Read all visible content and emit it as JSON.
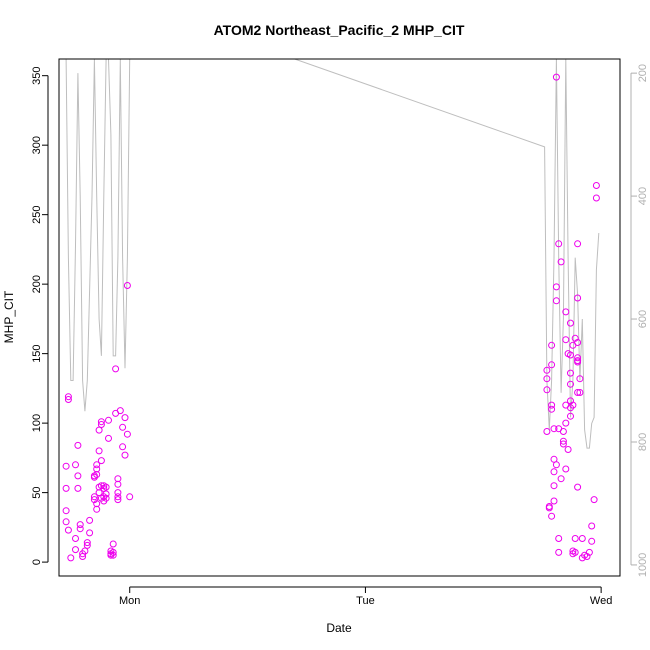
{
  "chart_data": {
    "type": "scatter",
    "title": "ATOM2 Northeast_Pacific_2 MHP_CIT",
    "xlabel": "Date",
    "ylabel": "MHP_CIT",
    "x_ticks": [
      "Mon",
      "Tue",
      "Wed"
    ],
    "x_tick_days": [
      1,
      2,
      3
    ],
    "xlim_days": [
      0.7,
      3.08
    ],
    "ylim": [
      -10,
      362
    ],
    "y_ticks": [
      0,
      50,
      100,
      150,
      200,
      250,
      300,
      350
    ],
    "y2_ticks": [
      200,
      400,
      600,
      800,
      1000
    ],
    "y2lim": [
      1018,
      177
    ],
    "y2_reversed": true,
    "point_color": "#ee00ee",
    "line_color": "#bebebe",
    "series": [
      {
        "values": [
          [
            0.74,
            119
          ],
          [
            0.74,
            117
          ],
          [
            0.73,
            69
          ],
          [
            0.73,
            53
          ],
          [
            0.73,
            37
          ],
          [
            0.73,
            29
          ],
          [
            0.74,
            23
          ],
          [
            0.75,
            3
          ],
          [
            0.77,
            9
          ],
          [
            0.77,
            17
          ],
          [
            0.78,
            84
          ],
          [
            0.77,
            70
          ],
          [
            0.78,
            62
          ],
          [
            0.78,
            53
          ],
          [
            0.79,
            27
          ],
          [
            0.79,
            24
          ],
          [
            0.8,
            6
          ],
          [
            0.8,
            4
          ],
          [
            0.81,
            8
          ],
          [
            0.82,
            12
          ],
          [
            0.82,
            14
          ],
          [
            0.83,
            30
          ],
          [
            0.83,
            21
          ],
          [
            0.85,
            62
          ],
          [
            0.85,
            61
          ],
          [
            0.85,
            47
          ],
          [
            0.85,
            45
          ],
          [
            0.86,
            70
          ],
          [
            0.86,
            67
          ],
          [
            0.86,
            63
          ],
          [
            0.86,
            42
          ],
          [
            0.86,
            38
          ],
          [
            0.87,
            95
          ],
          [
            0.87,
            80
          ],
          [
            0.87,
            54
          ],
          [
            0.87,
            50
          ],
          [
            0.88,
            101
          ],
          [
            0.88,
            99
          ],
          [
            0.88,
            73
          ],
          [
            0.88,
            55
          ],
          [
            0.88,
            46
          ],
          [
            0.89,
            55
          ],
          [
            0.89,
            53
          ],
          [
            0.89,
            47
          ],
          [
            0.89,
            44
          ],
          [
            0.9,
            54
          ],
          [
            0.9,
            49
          ],
          [
            0.9,
            46
          ],
          [
            0.91,
            102
          ],
          [
            0.91,
            89
          ],
          [
            0.92,
            8
          ],
          [
            0.92,
            6
          ],
          [
            0.92,
            5
          ],
          [
            0.93,
            7
          ],
          [
            0.93,
            5
          ],
          [
            0.93,
            13
          ],
          [
            0.94,
            139
          ],
          [
            0.94,
            107
          ],
          [
            0.95,
            60
          ],
          [
            0.95,
            56
          ],
          [
            0.95,
            50
          ],
          [
            0.95,
            47
          ],
          [
            0.95,
            45
          ],
          [
            0.96,
            109
          ],
          [
            0.97,
            97
          ],
          [
            0.97,
            83
          ],
          [
            0.98,
            77
          ],
          [
            0.98,
            104
          ],
          [
            0.99,
            92
          ],
          [
            0.99,
            199
          ],
          [
            1.0,
            47
          ],
          [
            2.77,
            138
          ],
          [
            2.77,
            132
          ],
          [
            2.77,
            124
          ],
          [
            2.77,
            94
          ],
          [
            2.78,
            40
          ],
          [
            2.78,
            39
          ],
          [
            2.79,
            33
          ],
          [
            2.79,
            156
          ],
          [
            2.79,
            142
          ],
          [
            2.79,
            113
          ],
          [
            2.79,
            110
          ],
          [
            2.8,
            96
          ],
          [
            2.8,
            74
          ],
          [
            2.8,
            65
          ],
          [
            2.8,
            55
          ],
          [
            2.8,
            44
          ],
          [
            2.81,
            349
          ],
          [
            2.81,
            198
          ],
          [
            2.81,
            188
          ],
          [
            2.81,
            70
          ],
          [
            2.82,
            229
          ],
          [
            2.82,
            96
          ],
          [
            2.82,
            17
          ],
          [
            2.82,
            7
          ],
          [
            2.83,
            216
          ],
          [
            2.83,
            60
          ],
          [
            2.84,
            94
          ],
          [
            2.84,
            87
          ],
          [
            2.84,
            85
          ],
          [
            2.85,
            180
          ],
          [
            2.85,
            160
          ],
          [
            2.85,
            113
          ],
          [
            2.85,
            100
          ],
          [
            2.85,
            67
          ],
          [
            2.86,
            150
          ],
          [
            2.86,
            81
          ],
          [
            2.87,
            172
          ],
          [
            2.87,
            149
          ],
          [
            2.87,
            136
          ],
          [
            2.87,
            128
          ],
          [
            2.87,
            116
          ],
          [
            2.87,
            111
          ],
          [
            2.87,
            105
          ],
          [
            2.88,
            156
          ],
          [
            2.88,
            113
          ],
          [
            2.88,
            8
          ],
          [
            2.88,
            6
          ],
          [
            2.89,
            161
          ],
          [
            2.89,
            17
          ],
          [
            2.89,
            7
          ],
          [
            2.9,
            229
          ],
          [
            2.9,
            190
          ],
          [
            2.9,
            158
          ],
          [
            2.9,
            147
          ],
          [
            2.9,
            145
          ],
          [
            2.9,
            144
          ],
          [
            2.9,
            122
          ],
          [
            2.9,
            54
          ],
          [
            2.91,
            132
          ],
          [
            2.91,
            122
          ],
          [
            2.92,
            17
          ],
          [
            2.92,
            3
          ],
          [
            2.93,
            5
          ],
          [
            2.94,
            4
          ],
          [
            2.95,
            7
          ],
          [
            2.96,
            26
          ],
          [
            2.96,
            15
          ],
          [
            2.97,
            45
          ],
          [
            2.98,
            271
          ],
          [
            2.98,
            262
          ]
        ]
      },
      {
        "axis": "right",
        "values": [
          [
            0.73,
            177
          ],
          [
            0.74,
            500
          ],
          [
            0.75,
            700
          ],
          [
            0.76,
            700
          ],
          [
            0.77,
            480
          ],
          [
            0.78,
            200
          ],
          [
            0.79,
            400
          ],
          [
            0.8,
            700
          ],
          [
            0.81,
            750
          ],
          [
            0.82,
            700
          ],
          [
            0.84,
            400
          ],
          [
            0.85,
            177
          ],
          [
            0.86,
            400
          ],
          [
            0.87,
            600
          ],
          [
            0.88,
            660
          ],
          [
            0.89,
            400
          ],
          [
            0.9,
            177
          ],
          [
            0.91,
            177
          ],
          [
            0.92,
            300
          ],
          [
            0.93,
            660
          ],
          [
            0.94,
            660
          ],
          [
            0.95,
            500
          ],
          [
            0.96,
            177
          ],
          [
            0.97,
            500
          ],
          [
            0.98,
            680
          ],
          [
            0.99,
            500
          ],
          [
            1.0,
            177
          ],
          [
            1.7,
            177
          ],
          [
            2.76,
            320
          ],
          [
            2.77,
            700
          ],
          [
            2.78,
            780
          ],
          [
            2.79,
            700
          ],
          [
            2.8,
            500
          ],
          [
            2.81,
            177
          ],
          [
            2.82,
            500
          ],
          [
            2.83,
            720
          ],
          [
            2.84,
            600
          ],
          [
            2.85,
            177
          ],
          [
            2.86,
            500
          ],
          [
            2.87,
            760
          ],
          [
            2.88,
            700
          ],
          [
            2.89,
            500
          ],
          [
            2.9,
            560
          ],
          [
            2.91,
            700
          ],
          [
            2.92,
            600
          ],
          [
            2.93,
            780
          ],
          [
            2.94,
            810
          ],
          [
            2.95,
            810
          ],
          [
            2.96,
            770
          ],
          [
            2.97,
            760
          ],
          [
            2.98,
            520
          ],
          [
            2.99,
            460
          ]
        ]
      }
    ]
  }
}
